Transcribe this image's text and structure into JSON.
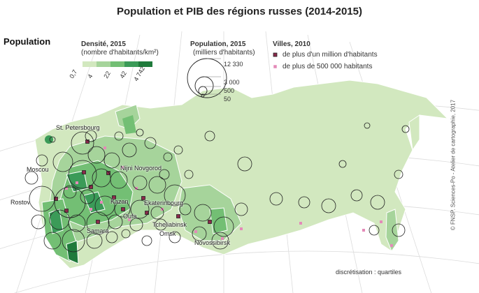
{
  "title": "Population et PIB des régions russes (2014-2015)",
  "section_label": "Population",
  "density_legend": {
    "title": "Densité, 2015",
    "subtitle": "(nombre d'habitants/km²)",
    "breaks": [
      "0,7",
      "4",
      "22",
      "42",
      "4 742"
    ],
    "colors": [
      "#d2e8bf",
      "#a6d49b",
      "#73bf74",
      "#3b9b58",
      "#1f7a3b"
    ]
  },
  "population_legend": {
    "title": "Population, 2015",
    "subtitle": "(milliers d'habitants)",
    "values": [
      "12 330",
      "3 000",
      "500",
      "50"
    ]
  },
  "cities_legend": {
    "title": "Villes, 2010",
    "million": "de plus d'un million d'habitants",
    "half_million": "de plus de 500 000 habitants",
    "million_color": "#8b2a4a",
    "half_million_color": "#e48ab8"
  },
  "cities": [
    "St. Petersbourg",
    "Moscou",
    "Nijni Novgorod",
    "Rostov",
    "Kazan",
    "Ekaterinbourg",
    "Oufa",
    "Samara",
    "Tcheliabinsk",
    "Omsk",
    "Novossibirsk"
  ],
  "note": "discrétisation : quartiles",
  "credit": "© FNSP. Sciences-Po - Atelier de cartographie, 2017"
}
